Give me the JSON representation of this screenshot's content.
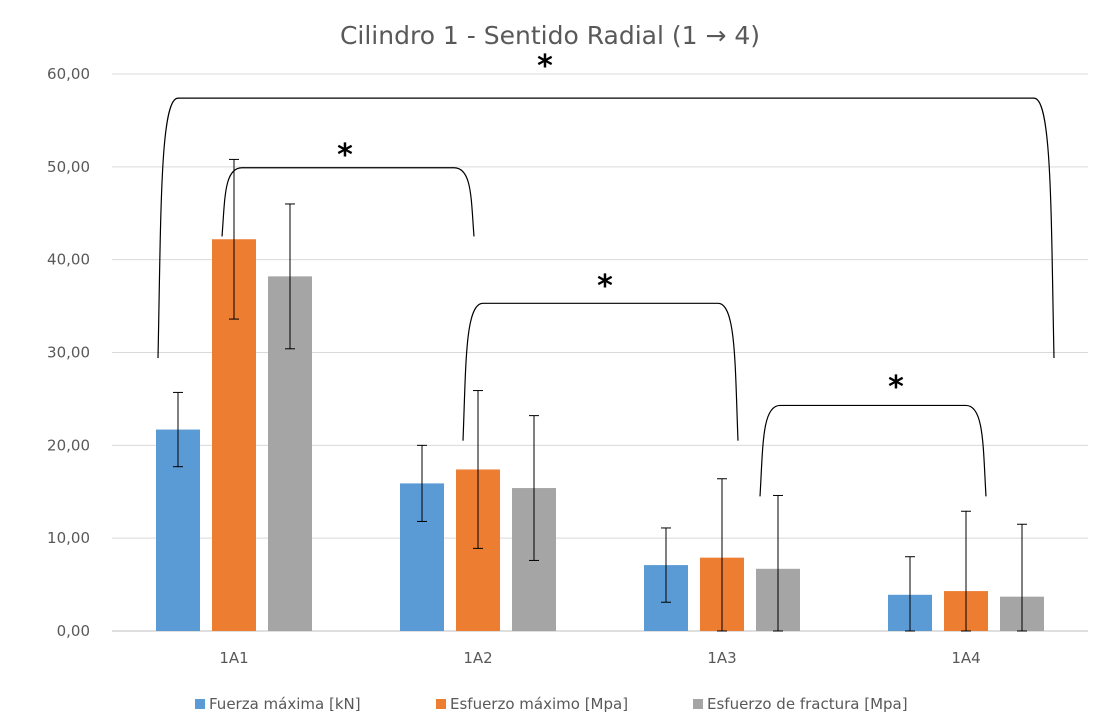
{
  "chart_data": {
    "type": "bar",
    "title": "Cilindro 1 - Sentido Radial (1 → 4)",
    "categories": [
      "1A1",
      "1A2",
      "1A3",
      "1A4"
    ],
    "ylim": [
      0,
      60
    ],
    "yticks": [
      0,
      10,
      20,
      30,
      40,
      50,
      60
    ],
    "ytick_labels": [
      "0,00",
      "10,00",
      "20,00",
      "30,00",
      "40,00",
      "50,00",
      "60,00"
    ],
    "grid": true,
    "legend_position": "bottom",
    "series": [
      {
        "name": "Fuerza máxima [kN]",
        "color": "#5B9BD5",
        "values": [
          21.7,
          15.9,
          7.1,
          3.9
        ],
        "errors": [
          4.0,
          4.1,
          4.0,
          4.1
        ]
      },
      {
        "name": "Esfuerzo máximo [Mpa]",
        "color": "#ED7D31",
        "values": [
          42.2,
          17.4,
          7.9,
          4.3
        ],
        "errors": [
          8.6,
          8.5,
          8.5,
          8.6
        ]
      },
      {
        "name": "Esfuerzo de fractura [Mpa]",
        "color": "#A5A5A5",
        "values": [
          38.2,
          15.4,
          6.7,
          3.7
        ],
        "errors": [
          7.8,
          7.8,
          7.9,
          7.8
        ]
      }
    ],
    "significance": [
      {
        "from": "1A1",
        "to": "1A4",
        "label": "*"
      },
      {
        "from": "1A1",
        "to": "1A2",
        "label": "*"
      },
      {
        "from": "1A2",
        "to": "1A3",
        "label": "*"
      },
      {
        "from": "1A3",
        "to": "1A4",
        "label": "*"
      }
    ]
  }
}
